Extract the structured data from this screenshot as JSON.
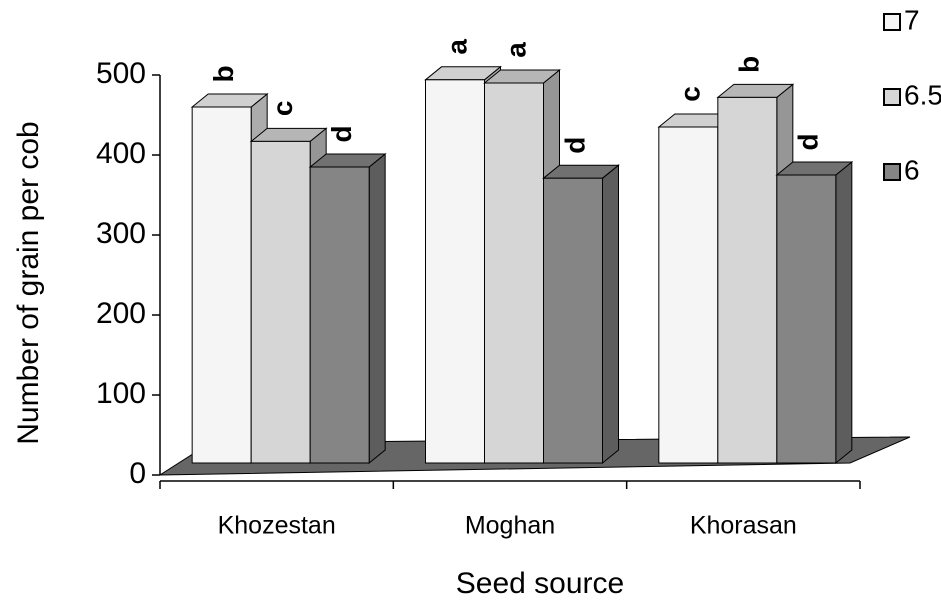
{
  "chart_data": {
    "type": "bar3d",
    "x_label": "Seed source",
    "y_label": "Number of grain per cob",
    "categories": [
      "Khozestan",
      "Moghan",
      "Khorasan"
    ],
    "series": [
      {
        "name": "7",
        "color": "#f5f5f5",
        "values": [
          445,
          479,
          420
        ],
        "labels": [
          "b",
          "a",
          "c"
        ]
      },
      {
        "name": "6.5",
        "color": "#d6d6d6",
        "values": [
          402,
          475,
          457
        ],
        "labels": [
          "c",
          "a",
          "b"
        ]
      },
      {
        "name": "6",
        "color": "#858585",
        "values": [
          370,
          356,
          360
        ],
        "labels": [
          "d",
          "d",
          "d"
        ]
      }
    ],
    "ylim": [
      0,
      500
    ],
    "yticks": [
      0,
      100,
      200,
      300,
      400,
      500
    ]
  }
}
